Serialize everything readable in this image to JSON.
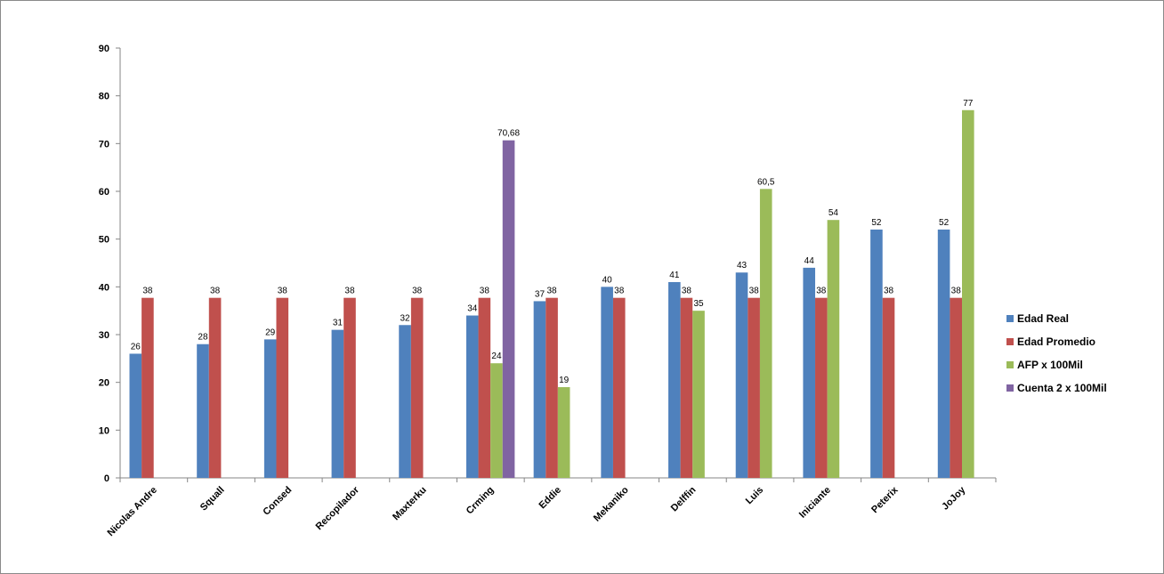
{
  "chart_data": {
    "type": "bar",
    "title": "",
    "xlabel": "",
    "ylabel": "",
    "ylim": [
      0,
      90
    ],
    "yticks": [
      0,
      10,
      20,
      30,
      40,
      50,
      60,
      70,
      80,
      90
    ],
    "grid": false,
    "legend_position": "right",
    "categories": [
      "Nicolas Andre",
      "Squall",
      "Consed",
      "Recopilador",
      "Maxterku",
      "Crming",
      "Eddie",
      "Mekaniko",
      "Delffin",
      "Luis",
      "Iniciante",
      "Peterix",
      "JoJoy"
    ],
    "series": [
      {
        "name": "Edad Real",
        "color": "#4f81bd",
        "values": [
          26,
          28,
          29,
          31,
          32,
          34,
          37,
          40,
          41,
          43,
          44,
          52,
          52
        ],
        "labels": [
          "26",
          "28",
          "29",
          "31",
          "32",
          "34",
          "37",
          "40",
          "41",
          "43",
          "44",
          "52",
          "52"
        ]
      },
      {
        "name": "Edad Promedio",
        "color": "#c0504d",
        "values": [
          37.7,
          37.7,
          37.7,
          37.7,
          37.7,
          37.7,
          37.7,
          37.7,
          37.7,
          37.7,
          37.7,
          37.7,
          37.7
        ],
        "labels": [
          "38",
          "38",
          "38",
          "38",
          "38",
          "38",
          "38",
          "38",
          "38",
          "38",
          "38",
          "38",
          "38"
        ]
      },
      {
        "name": "AFP x 100Mil",
        "color": "#9bbb59",
        "values": [
          null,
          null,
          null,
          null,
          null,
          24,
          19,
          null,
          35,
          60.5,
          54,
          null,
          77
        ],
        "labels": [
          null,
          null,
          null,
          null,
          null,
          "24",
          "19",
          null,
          "35",
          "60,5",
          "54",
          null,
          "77"
        ]
      },
      {
        "name": "Cuenta 2 x 100Mil",
        "color": "#8064a2",
        "values": [
          null,
          null,
          null,
          null,
          null,
          70.68,
          null,
          null,
          null,
          null,
          null,
          null,
          null
        ],
        "labels": [
          null,
          null,
          null,
          null,
          null,
          "70,68",
          null,
          null,
          null,
          null,
          null,
          null,
          null
        ]
      }
    ]
  }
}
